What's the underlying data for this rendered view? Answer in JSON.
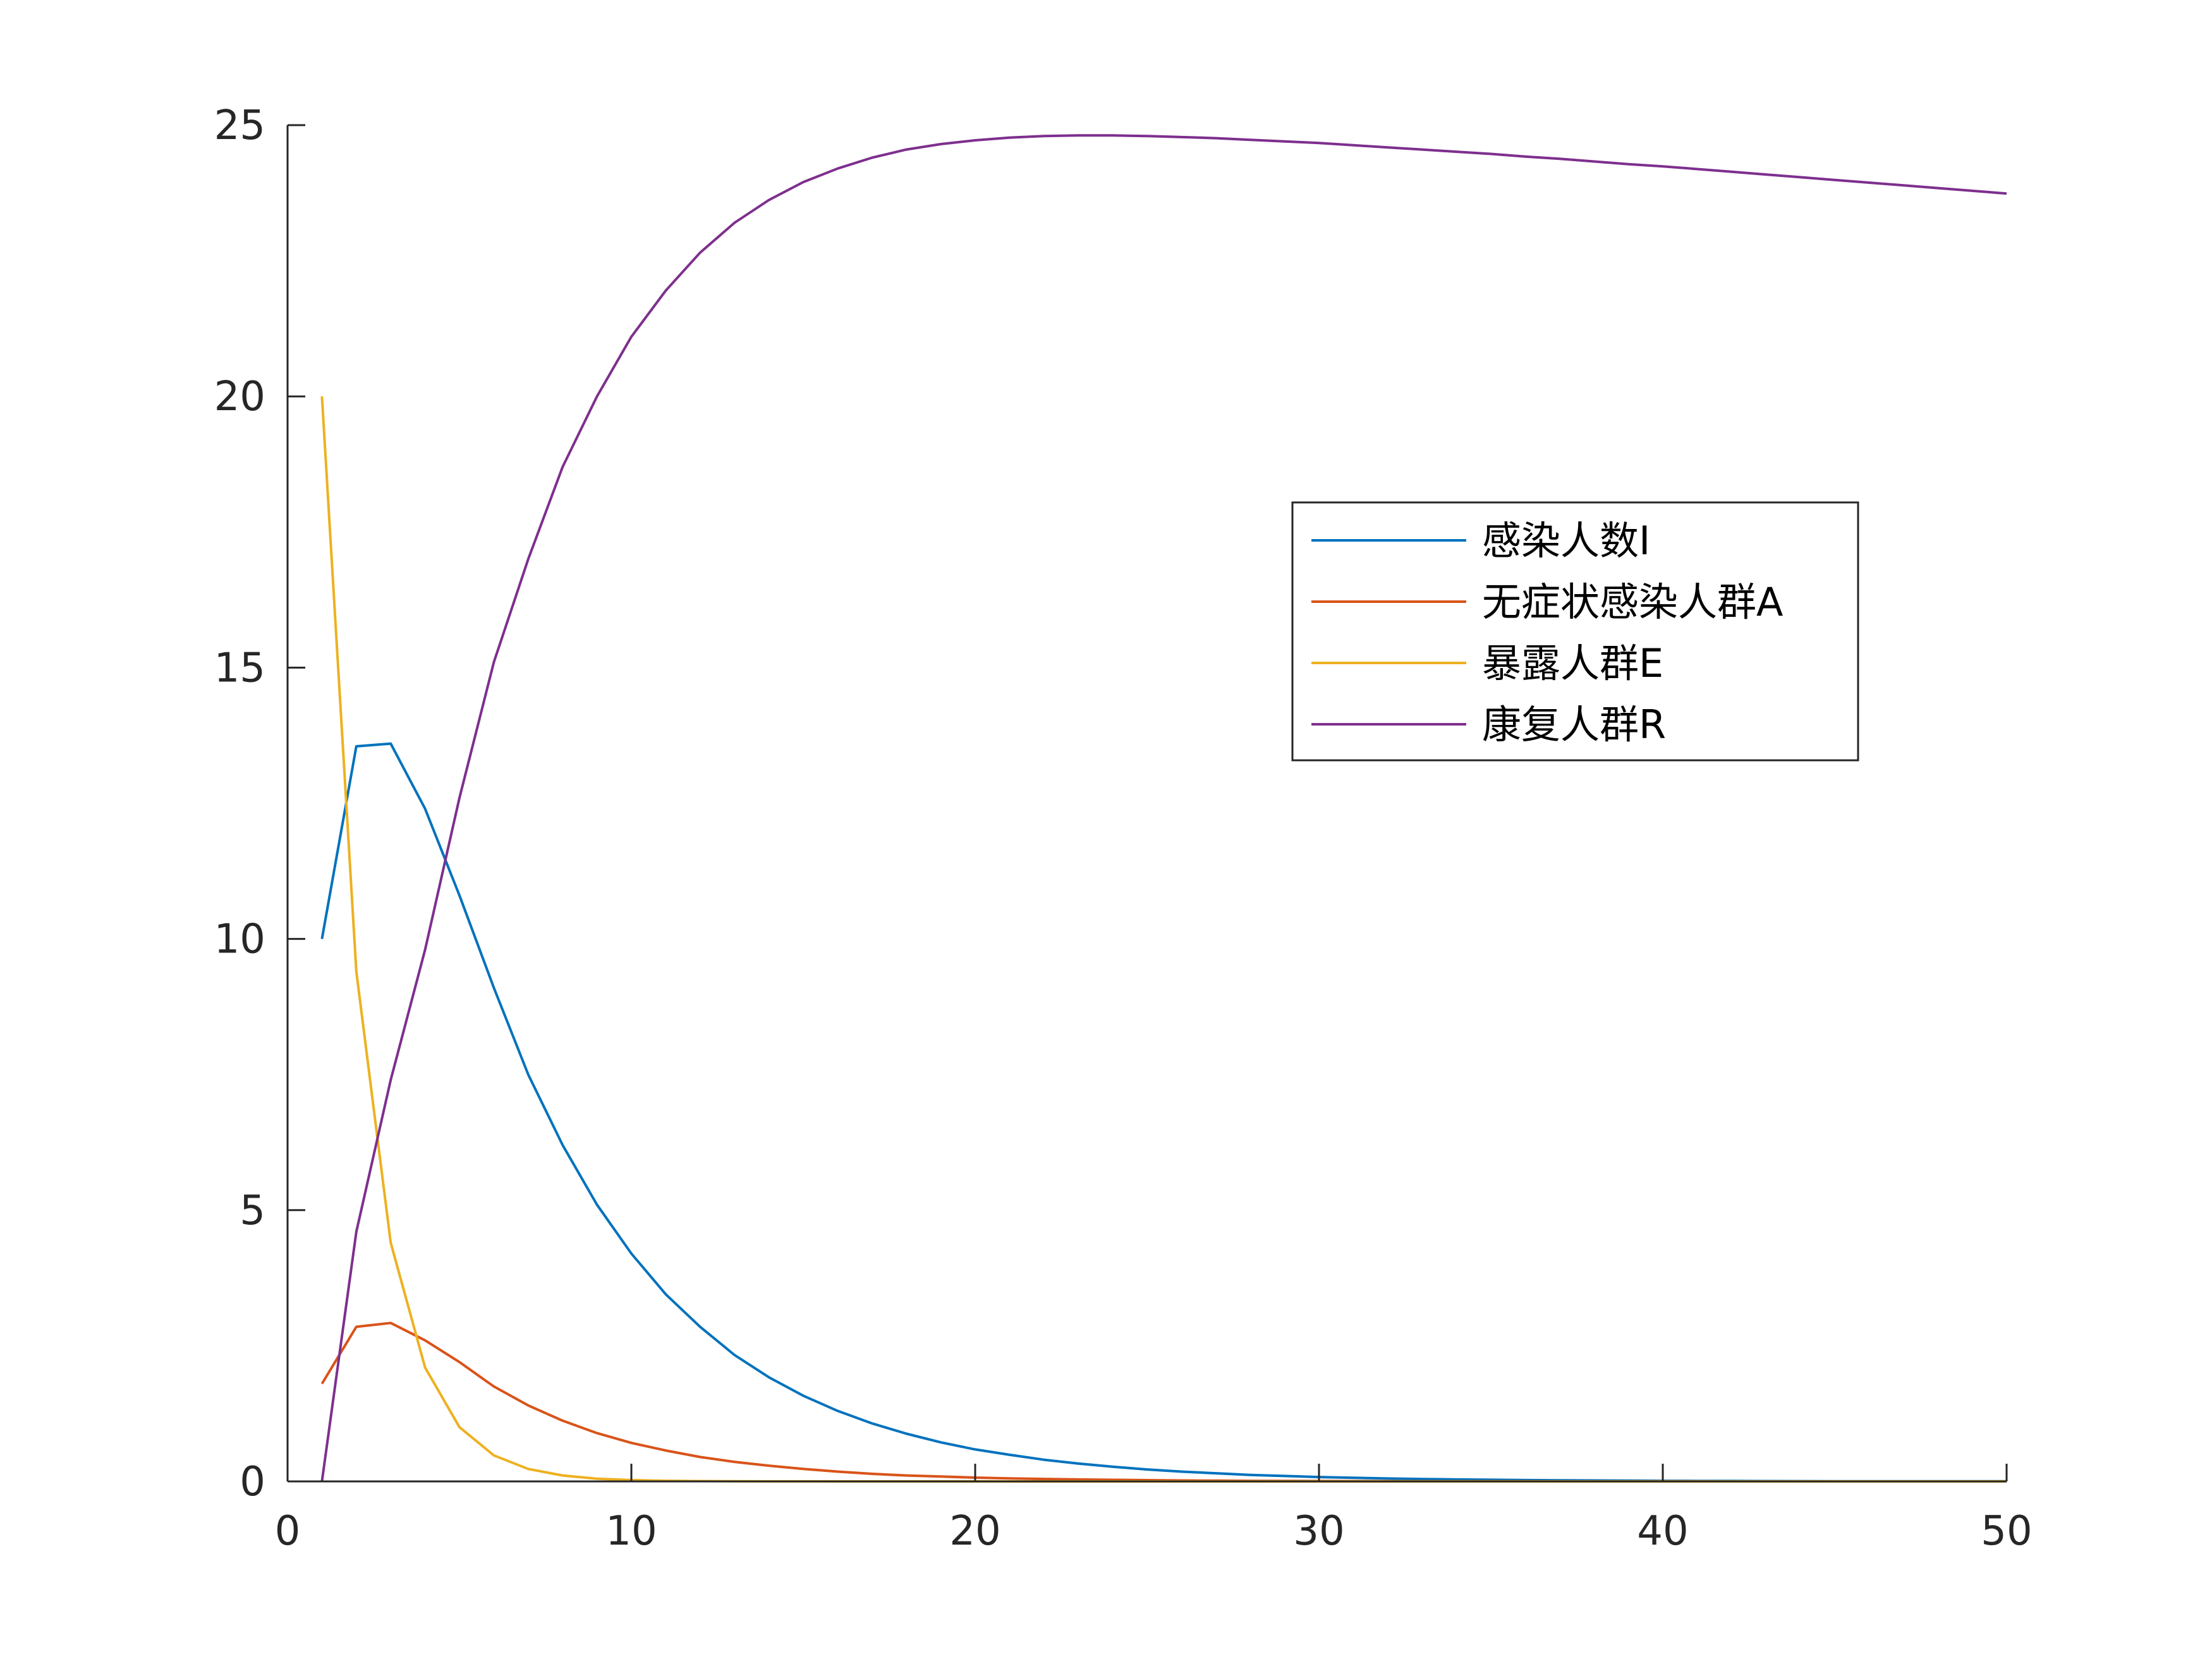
{
  "chart_data": {
    "type": "line",
    "title": "",
    "xlabel": "",
    "ylabel": "",
    "xlim": [
      0,
      50
    ],
    "ylim": [
      0,
      25
    ],
    "xticks": [
      "0",
      "10",
      "20",
      "30",
      "40",
      "50"
    ],
    "yticks": [
      "0",
      "5",
      "10",
      "15",
      "20",
      "25"
    ],
    "grid": false,
    "legend_position": "top-right (inside)",
    "x": [
      1,
      2,
      3,
      4,
      5,
      6,
      7,
      8,
      9,
      10,
      11,
      12,
      13,
      14,
      15,
      16,
      17,
      18,
      19,
      20,
      21,
      22,
      23,
      24,
      25,
      26,
      27,
      28,
      29,
      30,
      31,
      32,
      33,
      34,
      35,
      36,
      37,
      38,
      39,
      40,
      41,
      42,
      43,
      44,
      45,
      46,
      47,
      48,
      49,
      50
    ],
    "series": [
      {
        "name": "感染人数I",
        "color": "#0072BD",
        "values": [
          10.0,
          13.55,
          13.6,
          12.4,
          10.8,
          9.1,
          7.5,
          6.2,
          5.1,
          4.2,
          3.45,
          2.85,
          2.33,
          1.92,
          1.58,
          1.3,
          1.07,
          0.88,
          0.72,
          0.59,
          0.49,
          0.4,
          0.33,
          0.27,
          0.22,
          0.18,
          0.15,
          0.12,
          0.1,
          0.08,
          0.066,
          0.054,
          0.044,
          0.036,
          0.03,
          0.025,
          0.02,
          0.017,
          0.014,
          0.011,
          0.009,
          0.008,
          0.006,
          0.005,
          0.004,
          0.004,
          0.003,
          0.003,
          0.002,
          0.002
        ]
      },
      {
        "name": "无症状感染人群A",
        "color": "#D95319",
        "values": [
          1.8,
          2.85,
          2.92,
          2.6,
          2.2,
          1.75,
          1.4,
          1.12,
          0.89,
          0.71,
          0.57,
          0.45,
          0.36,
          0.29,
          0.23,
          0.18,
          0.14,
          0.11,
          0.09,
          0.07,
          0.056,
          0.045,
          0.036,
          0.029,
          0.023,
          0.018,
          0.014,
          0.011,
          0.009,
          0.007,
          0.006,
          0.005,
          0.004,
          0.003,
          0.0025,
          0.002,
          0.0016,
          0.0013,
          0.001,
          0.0008,
          0.0006,
          0.0005,
          0.0004,
          0.0003,
          0.0002,
          0.0002,
          0.0001,
          0.0001,
          0.0001,
          0.0001
        ]
      },
      {
        "name": "暴露人群E",
        "color": "#EDB120",
        "values": [
          20.0,
          9.4,
          4.4,
          2.1,
          1.0,
          0.48,
          0.23,
          0.11,
          0.05,
          0.024,
          0.012,
          0.006,
          0.003,
          0.0014,
          0.0007,
          0.0003,
          0.0002,
          0.0001,
          0.0,
          0.0,
          0.0,
          0.0,
          0.0,
          0.0,
          0.0,
          0.0,
          0.0,
          0.0,
          0.0,
          0.0,
          0.0,
          0.0,
          0.0,
          0.0,
          0.0,
          0.0,
          0.0,
          0.0,
          0.0,
          0.0,
          0.0,
          0.0,
          0.0,
          0.0,
          0.0,
          0.0,
          0.0,
          0.0,
          0.0,
          0.0
        ]
      },
      {
        "name": "康复人群R",
        "color": "#7E2F8E",
        "values": [
          0.0,
          4.6,
          7.4,
          9.8,
          12.6,
          15.1,
          17.0,
          18.7,
          20.0,
          21.1,
          21.95,
          22.65,
          23.2,
          23.62,
          23.95,
          24.2,
          24.4,
          24.55,
          24.65,
          24.72,
          24.77,
          24.8,
          24.81,
          24.81,
          24.8,
          24.78,
          24.76,
          24.73,
          24.7,
          24.67,
          24.63,
          24.59,
          24.55,
          24.51,
          24.47,
          24.42,
          24.38,
          24.33,
          24.28,
          24.24,
          24.19,
          24.14,
          24.09,
          24.04,
          23.99,
          23.94,
          23.89,
          23.84,
          23.79,
          23.74
        ]
      }
    ]
  }
}
